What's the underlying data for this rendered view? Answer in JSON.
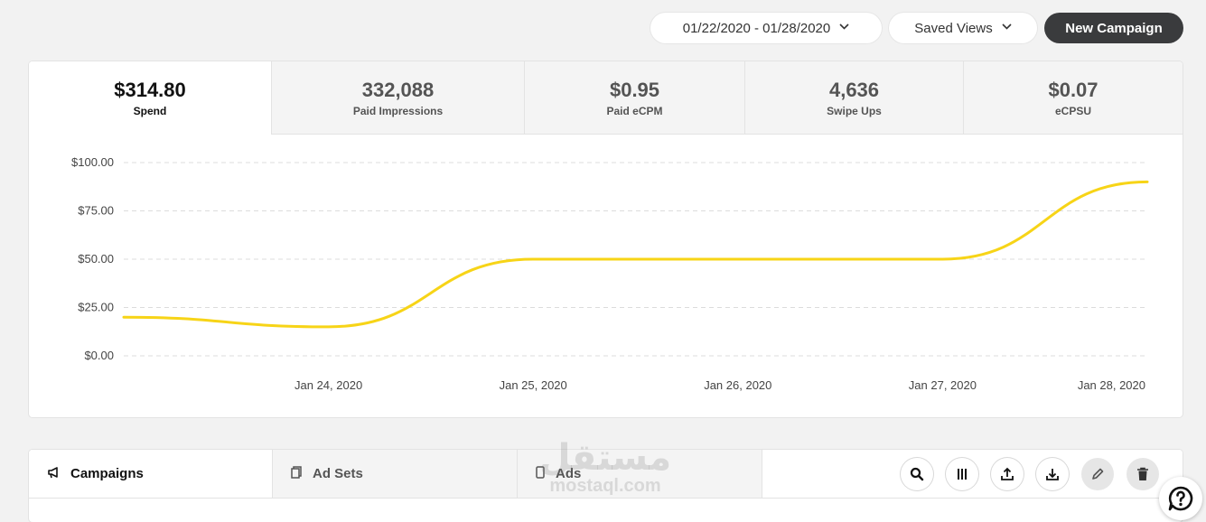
{
  "toolbar": {
    "date_range": "01/22/2020 - 01/28/2020",
    "saved_views": "Saved Views",
    "new_campaign": "New Campaign"
  },
  "metrics": [
    {
      "value": "$314.80",
      "label": "Spend",
      "active": true
    },
    {
      "value": "332,088",
      "label": "Paid Impressions"
    },
    {
      "value": "$0.95",
      "label": "Paid eCPM"
    },
    {
      "value": "4,636",
      "label": "Swipe Ups"
    },
    {
      "value": "$0.07",
      "label": "eCPSU"
    }
  ],
  "chart_data": {
    "type": "line",
    "color": "#f7d417",
    "x": [
      "2020-01-23",
      "2020-01-24",
      "2020-01-25",
      "2020-01-26",
      "2020-01-27",
      "2020-01-28"
    ],
    "x_tick_labels": [
      "Jan 24, 2020",
      "Jan 25, 2020",
      "Jan 26, 2020",
      "Jan 27, 2020",
      "Jan 28, 2020"
    ],
    "series": [
      {
        "values": [
          20,
          15,
          50,
          50,
          50,
          90
        ]
      }
    ],
    "y_tick_labels": [
      "$0.00",
      "$25.00",
      "$50.00",
      "$75.00",
      "$100.00"
    ],
    "y_ticks": [
      0,
      25,
      50,
      75,
      100
    ],
    "ylim": [
      0,
      100
    ],
    "grid": true,
    "title": "",
    "xlabel": "",
    "ylabel": ""
  },
  "tabs": [
    {
      "label": "Campaigns",
      "icon": "megaphone-icon",
      "active": true
    },
    {
      "label": "Ad Sets",
      "icon": "copy-icon"
    },
    {
      "label": "Ads",
      "icon": "phone-icon"
    }
  ],
  "actions": [
    "search-icon",
    "columns-icon",
    "upload-icon",
    "download-icon",
    "edit-icon",
    "trash-icon"
  ],
  "watermark": {
    "arabic": "مستقل",
    "latin": "mostaql.com"
  }
}
